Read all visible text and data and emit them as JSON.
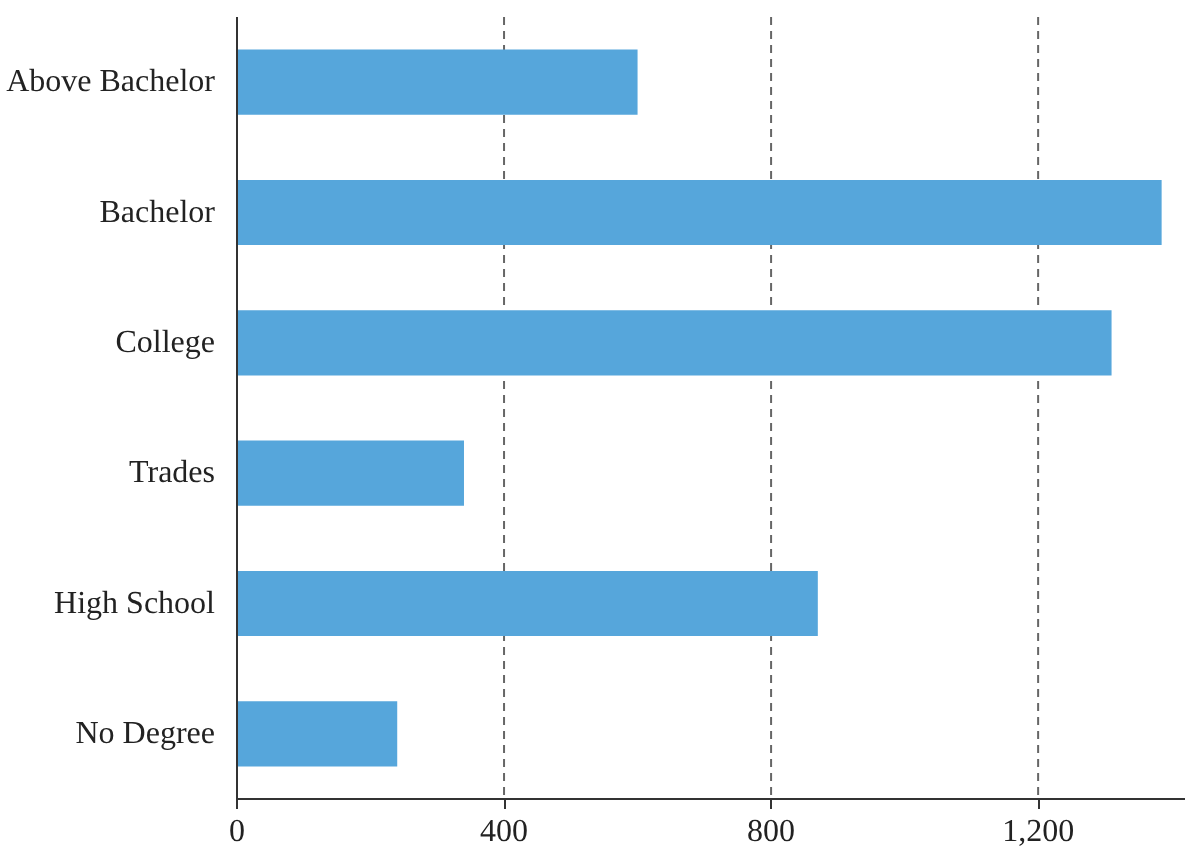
{
  "chart_data": {
    "type": "bar",
    "orientation": "horizontal",
    "categories": [
      "Above Bachelor",
      "Bachelor",
      "College",
      "Trades",
      "High School",
      "No Degree"
    ],
    "values": [
      600,
      1385,
      1310,
      340,
      870,
      240
    ],
    "color": "#56a6db",
    "xlim": [
      0,
      1420
    ],
    "xticks": [
      0,
      400,
      800,
      {
        "value": 1200,
        "label": "1,200"
      }
    ],
    "grid": "x"
  }
}
